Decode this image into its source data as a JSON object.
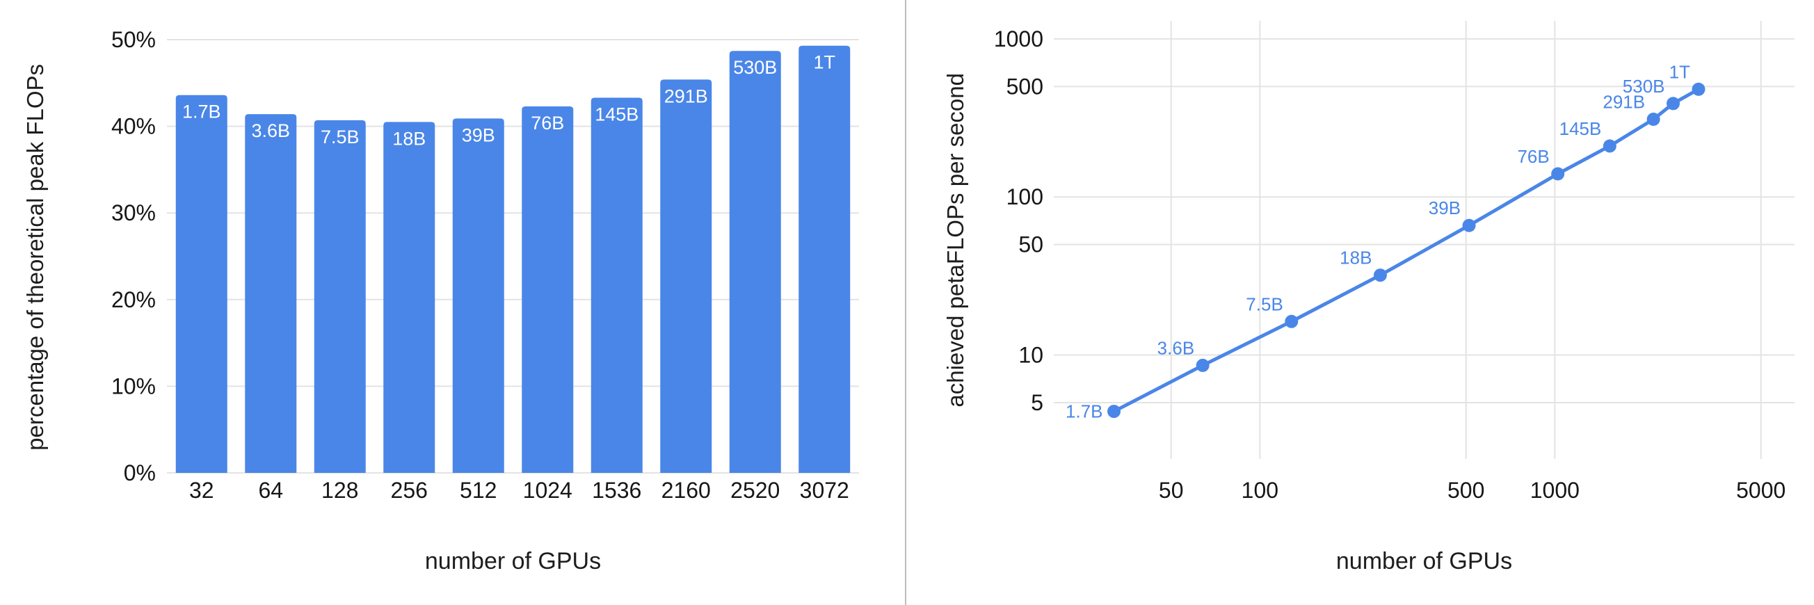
{
  "page": {
    "background": "#ffffff"
  },
  "chart_data": [
    {
      "type": "bar",
      "title": "",
      "xlabel": "number of GPUs",
      "ylabel": "percentage of theoretical peak FLOPs",
      "categories": [
        "32",
        "64",
        "128",
        "256",
        "512",
        "1024",
        "1536",
        "2160",
        "2520",
        "3072"
      ],
      "bar_labels": [
        "1.7B",
        "3.6B",
        "7.5B",
        "18B",
        "39B",
        "76B",
        "145B",
        "291B",
        "530B",
        "1T"
      ],
      "values": [
        43.6,
        41.4,
        40.7,
        40.5,
        40.9,
        42.3,
        43.3,
        45.4,
        48.7,
        49.3
      ],
      "ylim": [
        0,
        50
      ],
      "yticks": [
        0,
        10,
        20,
        30,
        40,
        50
      ],
      "ytick_labels": [
        "0%",
        "10%",
        "20%",
        "30%",
        "40%",
        "50%"
      ],
      "grid": true,
      "legend": "none",
      "bar_color": "#4a86e8"
    },
    {
      "type": "line",
      "title": "",
      "xlabel": "number of GPUs",
      "ylabel": "achieved petaFLOPs per second",
      "x": [
        32,
        64,
        128,
        256,
        512,
        1024,
        1536,
        2160,
        2520,
        3072
      ],
      "y": [
        4.4,
        8.6,
        16.3,
        32,
        66,
        140,
        210,
        310,
        390,
        480
      ],
      "point_labels": [
        "1.7B",
        "3.6B",
        "7.5B",
        "18B",
        "39B",
        "76B",
        "145B",
        "291B",
        "530B",
        "1T"
      ],
      "xscale": "log",
      "yscale": "log",
      "xticks": [
        50,
        100,
        500,
        1000,
        5000
      ],
      "xtick_labels": [
        "50",
        "100",
        "500",
        "1000",
        "5000"
      ],
      "yticks": [
        5,
        10,
        50,
        100,
        500,
        1000
      ],
      "ytick_labels": [
        "5",
        "10",
        "50",
        "100",
        "500",
        "1000"
      ],
      "xlim": [
        20,
        6500
      ],
      "ylim": [
        2.2,
        1300
      ],
      "grid": true,
      "legend": "none",
      "line_color": "#4a86e8",
      "marker_radius": 9.5
    }
  ]
}
